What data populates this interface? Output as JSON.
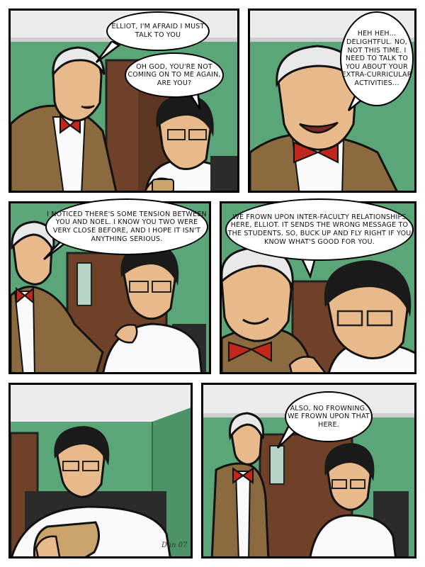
{
  "panels": [
    {
      "bubbles": [
        "ELLIOT, I'M AFRAID I MUST TALK TO YOU",
        "OH GOD, YOU'RE NOT COMING ON TO ME AGAIN, ARE YOU?"
      ]
    },
    {
      "bubbles": [
        "HEH HEH... DELIGHTFUL. NO, NOT THIS TIME. I NEED TO TALK TO YOU ABOUT YOUR EXTRA-CURRICULAR ACTIVITIES..."
      ]
    },
    {
      "bubbles": [
        "I NOTICED THERE'S SOME TENSION BETWEEN YOU AND NOEL. I KNOW YOU TWO WERE VERY CLOSE BEFORE, AND I HOPE IT ISN'T ANYTHING SERIOUS."
      ]
    },
    {
      "bubbles": [
        "WE FROWN UPON INTER-FACULTY RELATIONSHIPS HERE, ELLIOT. IT SENDS THE WRONG MESSAGE TO THE STUDENTS. SO, BUCK UP AND FLY RIGHT IF YOU KNOW WHAT'S GOOD FOR YOU."
      ]
    },
    {
      "bubbles": []
    },
    {
      "bubbles": [
        "ALSO, NO FROWNING. WE FROWN UPON THAT HERE."
      ]
    }
  ],
  "signature": "Dan 07",
  "colors": {
    "wall": "#5aa678",
    "ceiling": "#ececec",
    "door": "#7a4a2e",
    "jacket": "#8a6a3e",
    "tie": "#c0281c"
  }
}
